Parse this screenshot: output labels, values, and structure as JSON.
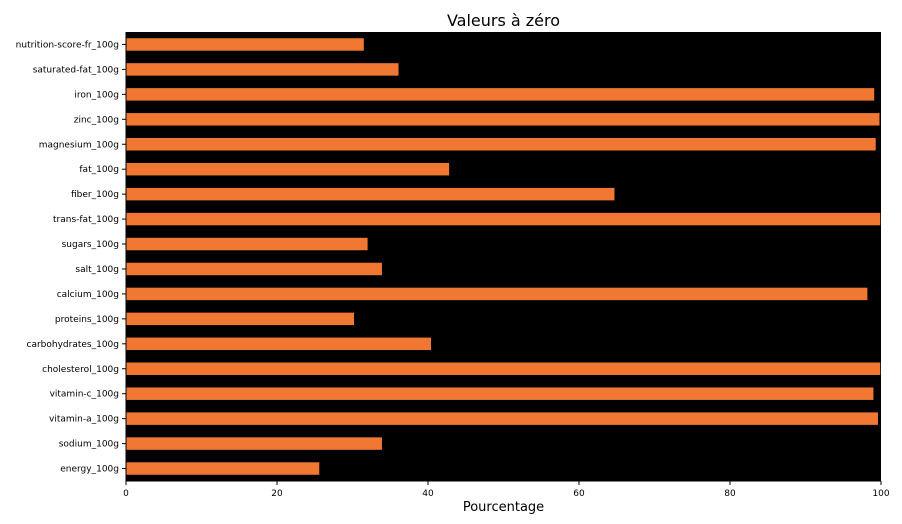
{
  "colors": {
    "bar": "#f07832",
    "plot_background": "#000000",
    "page_background": "#ffffff"
  },
  "chart_data": {
    "type": "bar",
    "orientation": "horizontal",
    "title": "Valeurs à zéro",
    "xlabel": "Pourcentage",
    "ylabel": "",
    "xlim": [
      0,
      100
    ],
    "xticks": [
      0,
      20,
      40,
      60,
      80,
      100
    ],
    "grid": false,
    "categories": [
      "nutrition-score-fr_100g",
      "saturated-fat_100g",
      "iron_100g",
      "zinc_100g",
      "magnesium_100g",
      "fat_100g",
      "fiber_100g",
      "trans-fat_100g",
      "sugars_100g",
      "salt_100g",
      "calcium_100g",
      "proteins_100g",
      "carbohydrates_100g",
      "cholesterol_100g",
      "vitamin-c_100g",
      "vitamin-a_100g",
      "sodium_100g",
      "energy_100g"
    ],
    "values": [
      31.5,
      36.1,
      99.1,
      99.8,
      99.3,
      42.8,
      64.7,
      99.9,
      32.0,
      33.9,
      98.2,
      30.2,
      40.4,
      99.9,
      99.0,
      99.6,
      33.9,
      25.6
    ]
  }
}
